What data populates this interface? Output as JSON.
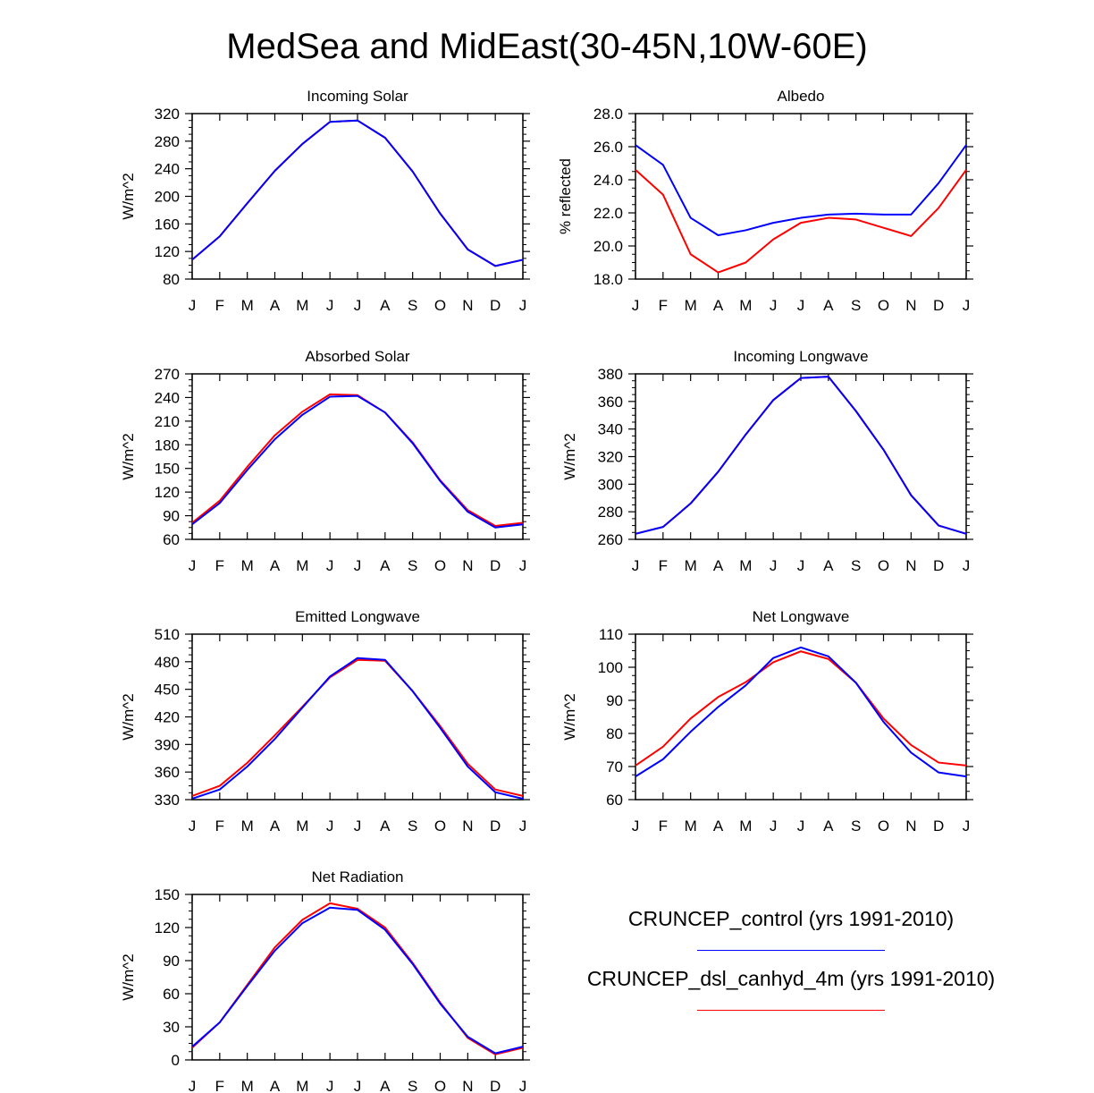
{
  "title": "MedSea and MidEast(30-45N,10W-60E)",
  "colors": {
    "control": "#0000ff",
    "dsl": "#ff0000",
    "axis": "#000000"
  },
  "months": [
    "J",
    "F",
    "M",
    "A",
    "M",
    "J",
    "J",
    "A",
    "S",
    "O",
    "N",
    "D",
    "J"
  ],
  "legend": {
    "items": [
      {
        "label": "CRUNCEP_control (yrs 1991-2010)",
        "color": "#0000ff"
      },
      {
        "label": "CRUNCEP_dsl_canhyd_4m (yrs 1991-2010)",
        "color": "#ff0000"
      }
    ]
  },
  "chart_data": [
    {
      "type": "line",
      "title": "Incoming Solar",
      "ylabel": "W/m^2",
      "ylim": [
        80,
        320
      ],
      "yticks": [
        "80",
        "120",
        "160",
        "200",
        "240",
        "280",
        "320"
      ],
      "categories": [
        "J",
        "F",
        "M",
        "A",
        "M",
        "J",
        "J",
        "A",
        "S",
        "O",
        "N",
        "D",
        "J"
      ],
      "series": [
        {
          "name": "CRUNCEP_dsl_canhyd_4m (yrs 1991-2010)",
          "values": [
            108,
            142,
            190,
            237,
            276,
            308,
            310,
            285,
            236,
            175,
            123,
            99,
            108
          ]
        },
        {
          "name": "CRUNCEP_control (yrs 1991-2010)",
          "values": [
            108,
            142,
            190,
            237,
            276,
            308,
            310,
            285,
            236,
            175,
            123,
            99,
            108
          ]
        }
      ]
    },
    {
      "type": "line",
      "title": "Albedo",
      "ylabel": "% reflected",
      "ylim": [
        18,
        28
      ],
      "yticks": [
        "18.0",
        "20.0",
        "22.0",
        "24.0",
        "26.0",
        "28.0"
      ],
      "categories": [
        "J",
        "F",
        "M",
        "A",
        "M",
        "J",
        "J",
        "A",
        "S",
        "O",
        "N",
        "D",
        "J"
      ],
      "series": [
        {
          "name": "CRUNCEP_dsl_canhyd_4m (yrs 1991-2010)",
          "values": [
            24.6,
            23.1,
            19.5,
            18.4,
            19.0,
            20.4,
            21.4,
            21.7,
            21.6,
            21.1,
            20.6,
            22.3,
            24.6
          ]
        },
        {
          "name": "CRUNCEP_control (yrs 1991-2010)",
          "values": [
            26.1,
            24.9,
            21.7,
            20.65,
            20.95,
            21.4,
            21.7,
            21.9,
            21.95,
            21.9,
            21.9,
            23.8,
            26.1
          ]
        }
      ]
    },
    {
      "type": "line",
      "title": "Absorbed Solar",
      "ylabel": "W/m^2",
      "ylim": [
        60,
        270
      ],
      "yticks": [
        "60",
        "90",
        "120",
        "150",
        "180",
        "210",
        "240",
        "270"
      ],
      "categories": [
        "J",
        "F",
        "M",
        "A",
        "M",
        "J",
        "J",
        "A",
        "S",
        "O",
        "N",
        "D",
        "J"
      ],
      "series": [
        {
          "name": "CRUNCEP_dsl_canhyd_4m (yrs 1991-2010)",
          "values": [
            81,
            109,
            152,
            192,
            222,
            244,
            243,
            221,
            183,
            135,
            97,
            77,
            81
          ]
        },
        {
          "name": "CRUNCEP_control (yrs 1991-2010)",
          "values": [
            79,
            106,
            148,
            187,
            218,
            241,
            242,
            221,
            182,
            134,
            95,
            75,
            79
          ]
        }
      ]
    },
    {
      "type": "line",
      "title": "Incoming Longwave",
      "ylabel": "W/m^2",
      "ylim": [
        260,
        380
      ],
      "yticks": [
        "260",
        "280",
        "300",
        "320",
        "340",
        "360",
        "380"
      ],
      "categories": [
        "J",
        "F",
        "M",
        "A",
        "M",
        "J",
        "J",
        "A",
        "S",
        "O",
        "N",
        "D",
        "J"
      ],
      "series": [
        {
          "name": "CRUNCEP_dsl_canhyd_4m (yrs 1991-2010)",
          "values": [
            264,
            269,
            286,
            309,
            336,
            361,
            377,
            378,
            353,
            325,
            292,
            270,
            264
          ]
        },
        {
          "name": "CRUNCEP_control (yrs 1991-2010)",
          "values": [
            264,
            269,
            286,
            309,
            336,
            361,
            377,
            378,
            353,
            325,
            292,
            270,
            264
          ]
        }
      ]
    },
    {
      "type": "line",
      "title": "Emitted Longwave",
      "ylabel": "W/m^2",
      "ylim": [
        330,
        510
      ],
      "yticks": [
        "330",
        "360",
        "390",
        "420",
        "450",
        "480",
        "510"
      ],
      "categories": [
        "J",
        "F",
        "M",
        "A",
        "M",
        "J",
        "J",
        "A",
        "S",
        "O",
        "N",
        "D",
        "J"
      ],
      "series": [
        {
          "name": "CRUNCEP_dsl_canhyd_4m (yrs 1991-2010)",
          "values": [
            334,
            345,
            370,
            400,
            431,
            463,
            482,
            481,
            448,
            410,
            369,
            341,
            334
          ]
        },
        {
          "name": "CRUNCEP_control (yrs 1991-2010)",
          "values": [
            331,
            341,
            366,
            396,
            430,
            464,
            484,
            482,
            448,
            408,
            366,
            338,
            331
          ]
        }
      ]
    },
    {
      "type": "line",
      "title": "Net Longwave",
      "ylabel": "W/m^2",
      "ylim": [
        60,
        110
      ],
      "yticks": [
        "60",
        "70",
        "80",
        "90",
        "100",
        "110"
      ],
      "categories": [
        "J",
        "F",
        "M",
        "A",
        "M",
        "J",
        "J",
        "A",
        "S",
        "O",
        "N",
        "D",
        "J"
      ],
      "series": [
        {
          "name": "CRUNCEP_dsl_canhyd_4m (yrs 1991-2010)",
          "values": [
            70.3,
            76,
            84.5,
            91,
            95.5,
            101.5,
            104.8,
            102.5,
            95.3,
            84.5,
            76.5,
            71.2,
            70.3
          ]
        },
        {
          "name": "CRUNCEP_control (yrs 1991-2010)",
          "values": [
            67,
            72.2,
            80.5,
            88,
            94.5,
            102.8,
            106,
            103.3,
            95.3,
            83.5,
            74.2,
            68.2,
            67
          ]
        }
      ]
    },
    {
      "type": "line",
      "title": "Net Radiation",
      "ylabel": "W/m^2",
      "ylim": [
        0,
        150
      ],
      "yticks": [
        "0",
        "30",
        "60",
        "90",
        "120",
        "150"
      ],
      "categories": [
        "J",
        "F",
        "M",
        "A",
        "M",
        "J",
        "J",
        "A",
        "S",
        "O",
        "N",
        "D",
        "J"
      ],
      "series": [
        {
          "name": "CRUNCEP_dsl_canhyd_4m (yrs 1991-2010)",
          "values": [
            11,
            34,
            68,
            102,
            127,
            142,
            137,
            120,
            88,
            52,
            20,
            5,
            11
          ]
        },
        {
          "name": "CRUNCEP_control (yrs 1991-2010)",
          "values": [
            12,
            34,
            67,
            99,
            124,
            138,
            136,
            118,
            87,
            51,
            21,
            6,
            12
          ]
        }
      ]
    }
  ]
}
